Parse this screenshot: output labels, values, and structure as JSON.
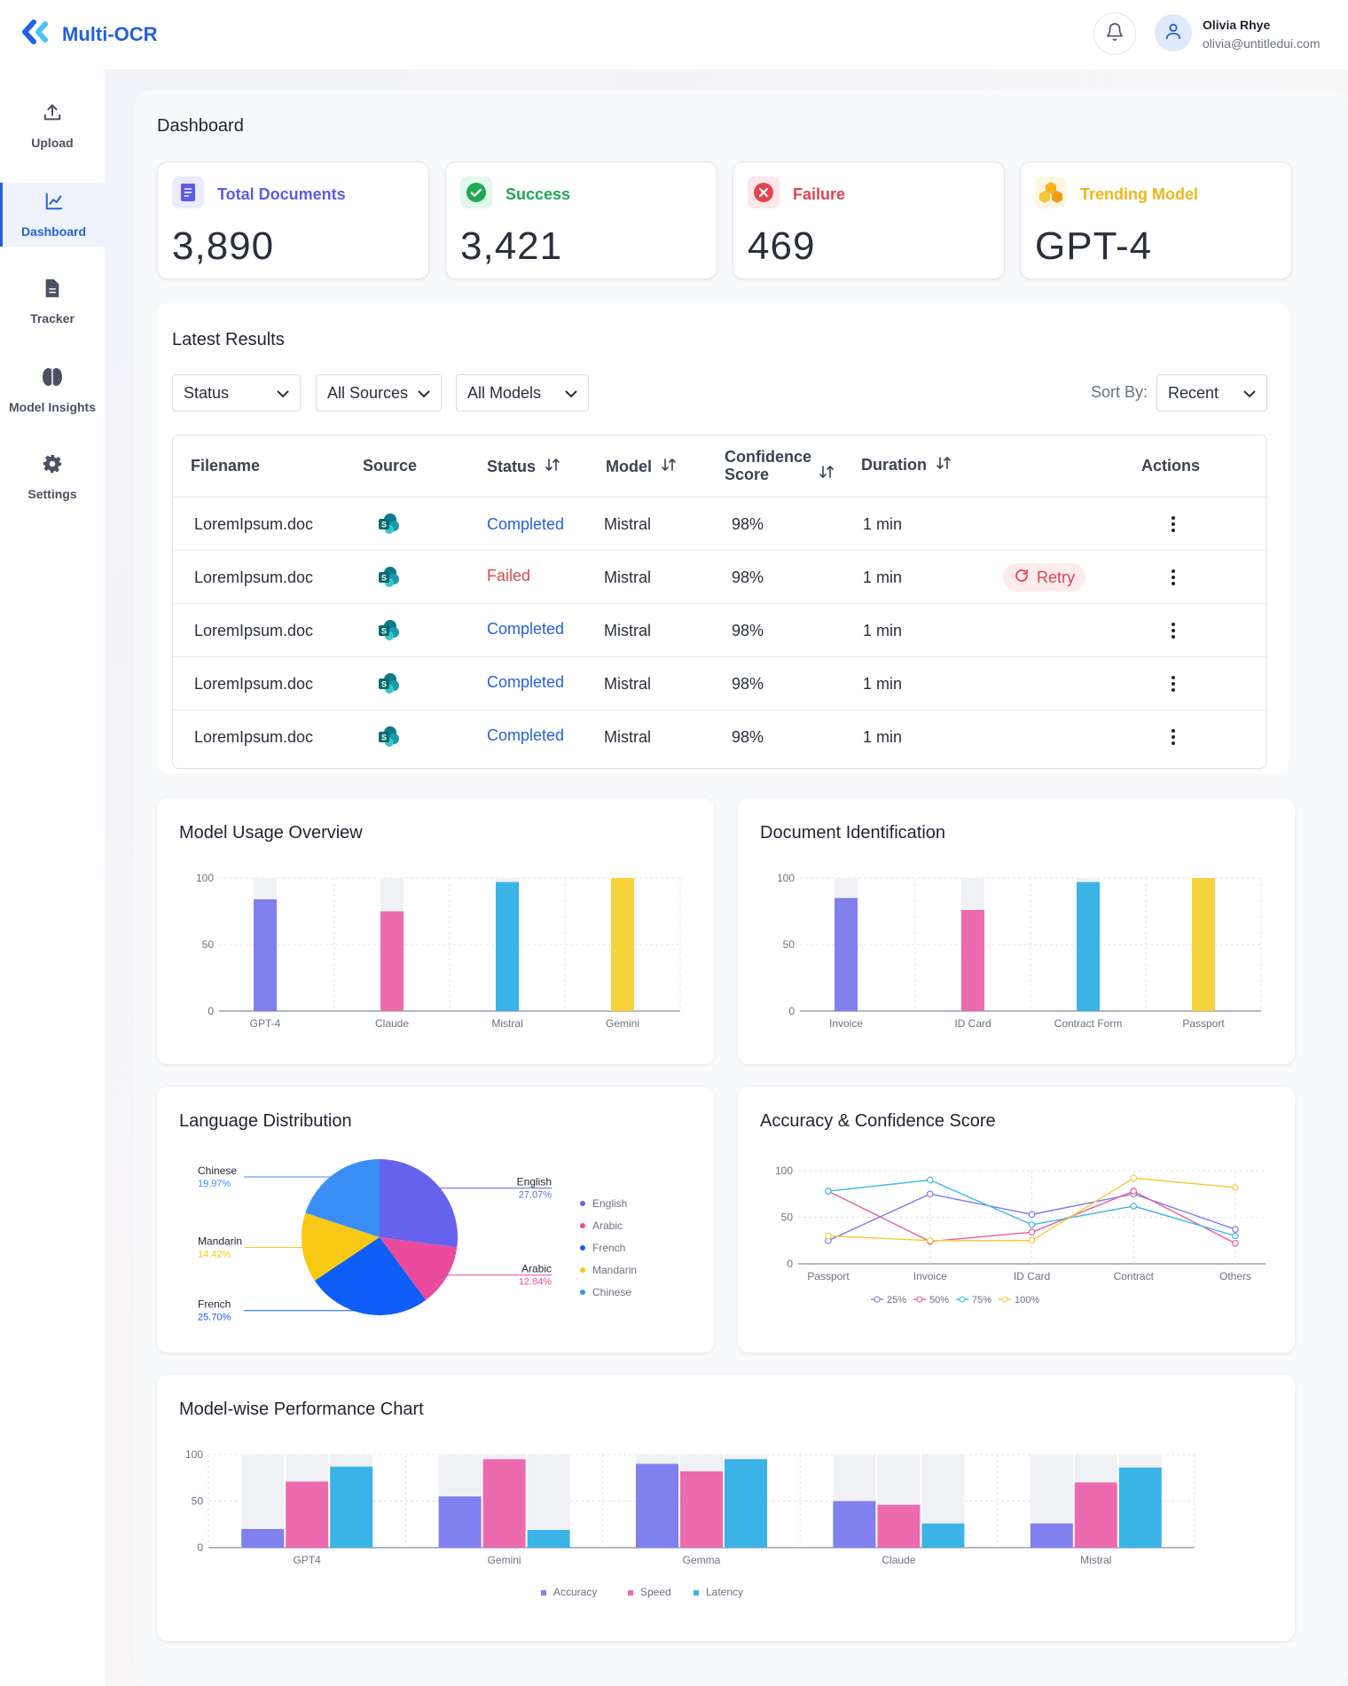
{
  "app": {
    "name": "Multi-OCR"
  },
  "user": {
    "name": "Olivia Rhye",
    "email": "olivia@untitledui.com"
  },
  "sidebar": {
    "items": [
      {
        "label": "Upload",
        "icon": "upload-icon"
      },
      {
        "label": "Dashboard",
        "icon": "chart-line-icon",
        "active": true
      },
      {
        "label": "Tracker",
        "icon": "file-icon"
      },
      {
        "label": "Model Insights",
        "icon": "brain-icon"
      },
      {
        "label": "Settings",
        "icon": "gear-icon"
      }
    ]
  },
  "page": {
    "title": "Dashboard"
  },
  "stats": [
    {
      "label": "Total Documents",
      "value": "3,890",
      "color": "#5b5ce6",
      "icon": "document-icon"
    },
    {
      "label": "Success",
      "value": "3,421",
      "color": "#1fa855",
      "icon": "check-circle-icon"
    },
    {
      "label": "Failure",
      "value": "469",
      "color": "#e0454f",
      "icon": "x-circle-icon"
    },
    {
      "label": "Trending Model",
      "value": "GPT-4",
      "color": "#f1b51c",
      "icon": "cubes-icon"
    }
  ],
  "results": {
    "title": "Latest Results",
    "filters": [
      "Status",
      "All Sources",
      "All Models"
    ],
    "sort_label": "Sort By:",
    "sort_value": "Recent",
    "columns": [
      "Filename",
      "Source",
      "Status",
      "Model",
      "Confidence Score",
      "Duration",
      "Actions"
    ],
    "retry_label": "Retry",
    "rows": [
      {
        "filename": "LoremIpsum.doc",
        "status": "Completed",
        "model": "Mistral",
        "confidence": "98%",
        "duration": "1 min"
      },
      {
        "filename": "LoremIpsum.doc",
        "status": "Failed",
        "model": "Mistral",
        "confidence": "98%",
        "duration": "1 min"
      },
      {
        "filename": "LoremIpsum.doc",
        "status": "Completed",
        "model": "Mistral",
        "confidence": "98%",
        "duration": "1 min"
      },
      {
        "filename": "LoremIpsum.doc",
        "status": "Completed",
        "model": "Mistral",
        "confidence": "98%",
        "duration": "1 min"
      },
      {
        "filename": "LoremIpsum.doc",
        "status": "Completed",
        "model": "Mistral",
        "confidence": "98%",
        "duration": "1 min"
      }
    ]
  },
  "charts": {
    "model_usage": {
      "title": "Model Usage Overview"
    },
    "doc_id": {
      "title": "Document Identification"
    },
    "language": {
      "title": "Language Distribution"
    },
    "accuracy": {
      "title": "Accuracy & Confidence Score"
    },
    "performance": {
      "title": "Model-wise Performance Chart"
    }
  },
  "chart_data": [
    {
      "type": "bar",
      "title": "Model Usage Overview",
      "categories": [
        "GPT-4",
        "Claude",
        "Mistral",
        "Gemini"
      ],
      "values": [
        84,
        75,
        97,
        100
      ],
      "colors": [
        "#8080ee",
        "#ec6aae",
        "#3bb3e6",
        "#f6d33c"
      ],
      "ylim": [
        0,
        100
      ],
      "yticks": [
        0,
        50,
        100
      ]
    },
    {
      "type": "bar",
      "title": "Document Identification",
      "categories": [
        "Invoice",
        "ID Card",
        "Contract Form",
        "Passport"
      ],
      "values": [
        85,
        76,
        97,
        100
      ],
      "colors": [
        "#8080ee",
        "#ec6aae",
        "#3bb3e6",
        "#f6d33c"
      ],
      "ylim": [
        0,
        100
      ],
      "yticks": [
        0,
        50,
        100
      ]
    },
    {
      "type": "pie",
      "title": "Language Distribution",
      "slices": [
        {
          "label": "English",
          "value": 27.07,
          "display": "27.07%",
          "color": "#6563ee"
        },
        {
          "label": "Arabic",
          "value": 12.84,
          "display": "12.84%",
          "color": "#eb4b9c"
        },
        {
          "label": "French",
          "value": 25.7,
          "display": "25.70%",
          "color": "#0f5ef7"
        },
        {
          "label": "Mandarin",
          "value": 14.42,
          "display": "14.42%",
          "color": "#f7c815"
        },
        {
          "label": "Chinese",
          "value": 19.97,
          "display": "19.97%",
          "color": "#3a8ff6"
        }
      ],
      "legend": [
        "English",
        "Arabic",
        "French",
        "Mandarin",
        "Chinese"
      ]
    },
    {
      "type": "line",
      "title": "Accuracy & Confidence Score",
      "categories": [
        "Passport",
        "Invoice",
        "ID Card",
        "Contract",
        "Others"
      ],
      "ylim": [
        0,
        100
      ],
      "yticks": [
        0,
        50,
        100
      ],
      "series": [
        {
          "name": "25%",
          "values": [
            25,
            75,
            53,
            75,
            37
          ],
          "color": "#7b78ee"
        },
        {
          "name": "50%",
          "values": [
            78,
            24,
            34,
            78,
            22
          ],
          "color": "#ec5b98"
        },
        {
          "name": "75%",
          "values": [
            78,
            90,
            42,
            62,
            30
          ],
          "color": "#3bb8e8"
        },
        {
          "name": "100%",
          "values": [
            30,
            25,
            25,
            92,
            82
          ],
          "color": "#f4c93e"
        }
      ]
    },
    {
      "type": "bar",
      "title": "Model-wise Performance Chart",
      "categories": [
        "GPT4",
        "Gemini",
        "Gemma",
        "Claude",
        "Mistral"
      ],
      "ylim": [
        0,
        100
      ],
      "yticks": [
        0,
        50,
        100
      ],
      "series": [
        {
          "name": "Accuracy",
          "values": [
            20,
            55,
            90,
            50,
            26
          ],
          "color": "#8080ee"
        },
        {
          "name": "Speed",
          "values": [
            71,
            95,
            82,
            46,
            70
          ],
          "color": "#ec6aae"
        },
        {
          "name": "Latency",
          "values": [
            87,
            19,
            95,
            26,
            86
          ],
          "color": "#3bb3e6"
        }
      ]
    }
  ]
}
